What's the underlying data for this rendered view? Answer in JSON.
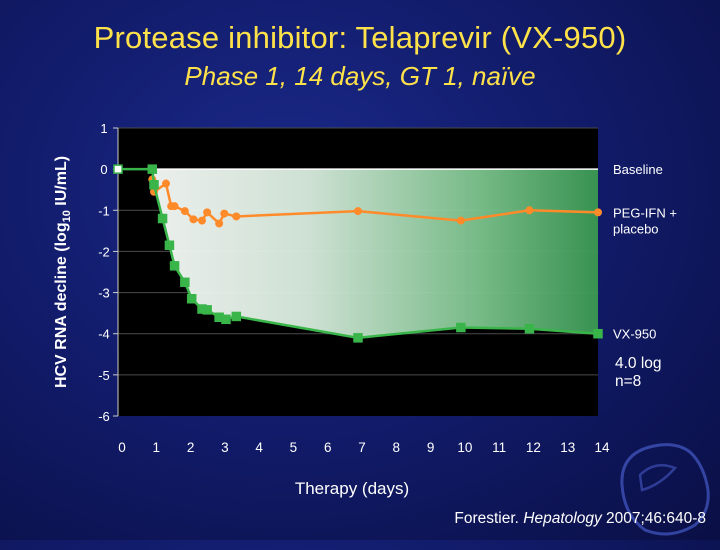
{
  "slide": {
    "title": "Protease inhibitor: Telaprevir (VX-950)",
    "subtitle": "Phase 1, 14 days, GT 1, naïve",
    "citation_author": "Forestier.",
    "citation_journal": "Hepatology",
    "citation_ref": "2007;46:640-8"
  },
  "chart_data": {
    "type": "line",
    "title": "",
    "xlabel": "Therapy (days)",
    "ylabel_prefix": "HCV RNA decline (log",
    "ylabel_sub": "10",
    "ylabel_suffix": " IU/mL)",
    "xlim": [
      0,
      14
    ],
    "ylim": [
      -6,
      1
    ],
    "x_ticks": [
      "0",
      "1",
      "2",
      "3",
      "4",
      "5",
      "6",
      "7",
      "8",
      "9",
      "10",
      "11",
      "12",
      "13",
      "14"
    ],
    "y_ticks": [
      "1",
      "0",
      "-1",
      "-2",
      "-3",
      "-4",
      "-5",
      "-6"
    ],
    "grid": "horizontal",
    "series": [
      {
        "name": "Baseline",
        "color": "#ffffff",
        "x": [
          0,
          14
        ],
        "y": [
          0,
          0
        ]
      },
      {
        "name": "PEG-IFN + placebo",
        "label_lines": [
          "PEG-IFN +",
          "placebo"
        ],
        "color": "#ff8a2a",
        "x": [
          1,
          1.05,
          1.4,
          1.55,
          1.65,
          1.95,
          2.2,
          2.45,
          2.6,
          2.95,
          3.1,
          3.45,
          7,
          10,
          12,
          14
        ],
        "y": [
          -0.25,
          -0.55,
          -0.35,
          -0.9,
          -0.9,
          -1.02,
          -1.22,
          -1.25,
          -1.05,
          -1.32,
          -1.08,
          -1.15,
          -1.02,
          -1.25,
          -1.0,
          -1.05
        ]
      },
      {
        "name": "VX-950",
        "color": "#39b54a",
        "x": [
          0,
          1,
          1.05,
          1.3,
          1.5,
          1.65,
          1.95,
          2.15,
          2.45,
          2.6,
          2.95,
          3.15,
          3.45,
          7,
          10,
          12,
          14
        ],
        "y": [
          0,
          0,
          -0.38,
          -1.2,
          -1.85,
          -2.35,
          -2.75,
          -3.15,
          -3.4,
          -3.42,
          -3.6,
          -3.65,
          -3.58,
          -4.1,
          -3.85,
          -3.88,
          -4.0
        ]
      }
    ],
    "annotations": [
      {
        "text": "4.0 log"
      },
      {
        "text": "n=8"
      }
    ]
  }
}
